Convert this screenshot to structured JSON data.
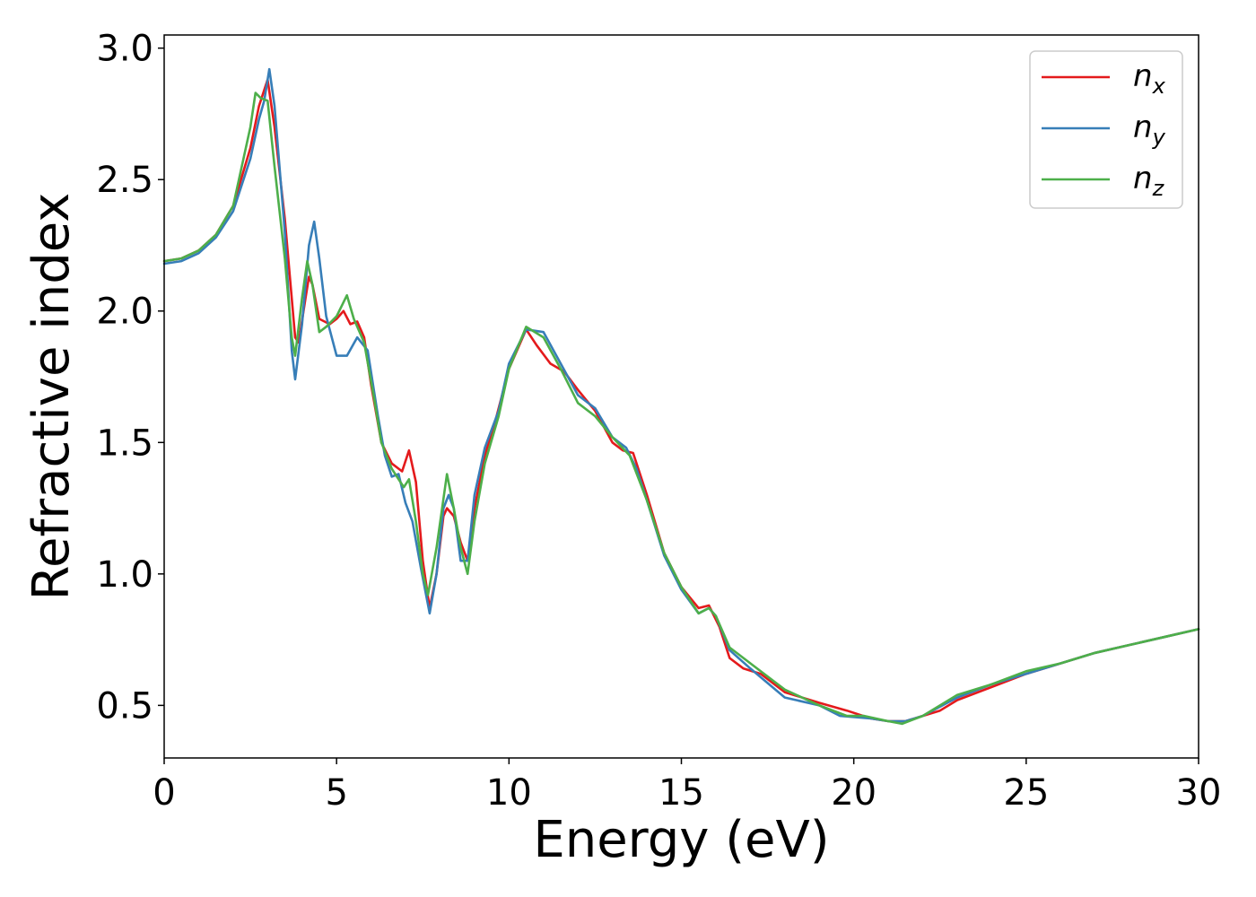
{
  "chart_data": {
    "type": "line",
    "title": "",
    "xlabel": "Energy (eV)",
    "ylabel": "Refractive index",
    "xlim": [
      0,
      30
    ],
    "ylim": [
      0.3,
      3.05
    ],
    "xticks": [
      0,
      5,
      10,
      15,
      20,
      25,
      30
    ],
    "xtick_labels": [
      "0",
      "5",
      "10",
      "15",
      "20",
      "25",
      "30"
    ],
    "yticks": [
      0.5,
      1.0,
      1.5,
      2.0,
      2.5,
      3.0
    ],
    "ytick_labels": [
      "0.5",
      "1.0",
      "1.5",
      "2.0",
      "2.5",
      "3.0"
    ],
    "grid": false,
    "legend_position": "top-right",
    "series": [
      {
        "name": "n",
        "subscript": "x",
        "color": "#e41a1c",
        "points": [
          [
            0,
            2.19
          ],
          [
            0.5,
            2.2
          ],
          [
            1,
            2.23
          ],
          [
            1.5,
            2.29
          ],
          [
            2,
            2.4
          ],
          [
            2.5,
            2.62
          ],
          [
            2.75,
            2.78
          ],
          [
            3.0,
            2.88
          ],
          [
            3.2,
            2.7
          ],
          [
            3.5,
            2.35
          ],
          [
            3.8,
            1.9
          ],
          [
            3.9,
            1.88
          ],
          [
            4.1,
            2.05
          ],
          [
            4.2,
            2.13
          ],
          [
            4.3,
            2.1
          ],
          [
            4.5,
            1.97
          ],
          [
            4.8,
            1.95
          ],
          [
            5.0,
            1.97
          ],
          [
            5.2,
            2.0
          ],
          [
            5.4,
            1.95
          ],
          [
            5.6,
            1.96
          ],
          [
            5.8,
            1.9
          ],
          [
            6.0,
            1.72
          ],
          [
            6.3,
            1.5
          ],
          [
            6.6,
            1.42
          ],
          [
            6.9,
            1.39
          ],
          [
            7.1,
            1.47
          ],
          [
            7.3,
            1.35
          ],
          [
            7.5,
            1.05
          ],
          [
            7.7,
            0.87
          ],
          [
            7.9,
            1.0
          ],
          [
            8.1,
            1.22
          ],
          [
            8.2,
            1.25
          ],
          [
            8.4,
            1.22
          ],
          [
            8.6,
            1.12
          ],
          [
            8.8,
            1.05
          ],
          [
            9.0,
            1.25
          ],
          [
            9.3,
            1.45
          ],
          [
            9.6,
            1.58
          ],
          [
            10.0,
            1.78
          ],
          [
            10.5,
            1.93
          ],
          [
            10.8,
            1.87
          ],
          [
            11.2,
            1.8
          ],
          [
            11.6,
            1.77
          ],
          [
            12.0,
            1.7
          ],
          [
            12.5,
            1.62
          ],
          [
            13.0,
            1.5
          ],
          [
            13.3,
            1.47
          ],
          [
            13.6,
            1.46
          ],
          [
            14.0,
            1.3
          ],
          [
            14.5,
            1.08
          ],
          [
            15.0,
            0.95
          ],
          [
            15.5,
            0.87
          ],
          [
            15.8,
            0.88
          ],
          [
            16.1,
            0.8
          ],
          [
            16.4,
            0.68
          ],
          [
            16.8,
            0.64
          ],
          [
            17.3,
            0.62
          ],
          [
            18.0,
            0.55
          ],
          [
            19.0,
            0.51
          ],
          [
            19.8,
            0.48
          ],
          [
            20.5,
            0.45
          ],
          [
            21.0,
            0.44
          ],
          [
            21.5,
            0.44
          ],
          [
            22.0,
            0.46
          ],
          [
            22.5,
            0.48
          ],
          [
            23.0,
            0.52
          ],
          [
            24.0,
            0.57
          ],
          [
            25.0,
            0.62
          ],
          [
            26.0,
            0.66
          ],
          [
            27.0,
            0.7
          ],
          [
            28.0,
            0.73
          ],
          [
            29.0,
            0.76
          ],
          [
            30.0,
            0.79
          ]
        ]
      },
      {
        "name": "n",
        "subscript": "y",
        "color": "#377eb8",
        "points": [
          [
            0,
            2.18
          ],
          [
            0.5,
            2.19
          ],
          [
            1,
            2.22
          ],
          [
            1.5,
            2.28
          ],
          [
            2,
            2.38
          ],
          [
            2.5,
            2.58
          ],
          [
            2.75,
            2.73
          ],
          [
            2.9,
            2.8
          ],
          [
            3.05,
            2.92
          ],
          [
            3.2,
            2.78
          ],
          [
            3.5,
            2.3
          ],
          [
            3.7,
            1.85
          ],
          [
            3.8,
            1.74
          ],
          [
            4.0,
            1.95
          ],
          [
            4.2,
            2.25
          ],
          [
            4.35,
            2.34
          ],
          [
            4.5,
            2.2
          ],
          [
            4.7,
            1.98
          ],
          [
            5.0,
            1.83
          ],
          [
            5.3,
            1.83
          ],
          [
            5.6,
            1.9
          ],
          [
            5.9,
            1.85
          ],
          [
            6.2,
            1.6
          ],
          [
            6.4,
            1.45
          ],
          [
            6.6,
            1.37
          ],
          [
            6.8,
            1.38
          ],
          [
            7.0,
            1.27
          ],
          [
            7.2,
            1.2
          ],
          [
            7.45,
            1.02
          ],
          [
            7.7,
            0.85
          ],
          [
            7.9,
            1.0
          ],
          [
            8.1,
            1.25
          ],
          [
            8.25,
            1.3
          ],
          [
            8.4,
            1.25
          ],
          [
            8.6,
            1.05
          ],
          [
            8.8,
            1.05
          ],
          [
            9.0,
            1.3
          ],
          [
            9.3,
            1.48
          ],
          [
            9.7,
            1.62
          ],
          [
            10.0,
            1.8
          ],
          [
            10.5,
            1.93
          ],
          [
            11.0,
            1.92
          ],
          [
            11.5,
            1.8
          ],
          [
            12.0,
            1.68
          ],
          [
            12.5,
            1.63
          ],
          [
            13.0,
            1.52
          ],
          [
            13.4,
            1.48
          ],
          [
            13.7,
            1.4
          ],
          [
            14.0,
            1.28
          ],
          [
            14.5,
            1.07
          ],
          [
            15.0,
            0.94
          ],
          [
            15.5,
            0.85
          ],
          [
            15.8,
            0.87
          ],
          [
            16.0,
            0.84
          ],
          [
            16.4,
            0.71
          ],
          [
            17.0,
            0.64
          ],
          [
            18.0,
            0.53
          ],
          [
            19.0,
            0.5
          ],
          [
            19.6,
            0.46
          ],
          [
            20.5,
            0.45
          ],
          [
            21.0,
            0.44
          ],
          [
            21.5,
            0.44
          ],
          [
            22.0,
            0.46
          ],
          [
            23.0,
            0.53
          ],
          [
            24.0,
            0.58
          ],
          [
            25.0,
            0.62
          ],
          [
            26.0,
            0.66
          ],
          [
            27.0,
            0.7
          ],
          [
            28.0,
            0.73
          ],
          [
            29.0,
            0.76
          ],
          [
            30.0,
            0.79
          ]
        ]
      },
      {
        "name": "n",
        "subscript": "z",
        "color": "#4daf4a",
        "points": [
          [
            0,
            2.19
          ],
          [
            0.5,
            2.2
          ],
          [
            1,
            2.23
          ],
          [
            1.5,
            2.29
          ],
          [
            2,
            2.4
          ],
          [
            2.5,
            2.7
          ],
          [
            2.65,
            2.83
          ],
          [
            2.8,
            2.81
          ],
          [
            3.0,
            2.8
          ],
          [
            3.2,
            2.55
          ],
          [
            3.5,
            2.2
          ],
          [
            3.7,
            1.9
          ],
          [
            3.8,
            1.83
          ],
          [
            4.0,
            2.05
          ],
          [
            4.15,
            2.19
          ],
          [
            4.3,
            2.1
          ],
          [
            4.5,
            1.92
          ],
          [
            4.7,
            1.94
          ],
          [
            5.0,
            1.98
          ],
          [
            5.3,
            2.06
          ],
          [
            5.5,
            1.97
          ],
          [
            5.8,
            1.88
          ],
          [
            6.1,
            1.66
          ],
          [
            6.3,
            1.5
          ],
          [
            6.6,
            1.4
          ],
          [
            6.8,
            1.36
          ],
          [
            6.95,
            1.33
          ],
          [
            7.1,
            1.36
          ],
          [
            7.3,
            1.2
          ],
          [
            7.5,
            1.0
          ],
          [
            7.65,
            0.92
          ],
          [
            7.9,
            1.1
          ],
          [
            8.2,
            1.38
          ],
          [
            8.4,
            1.25
          ],
          [
            8.6,
            1.1
          ],
          [
            8.8,
            1.0
          ],
          [
            9.0,
            1.2
          ],
          [
            9.3,
            1.42
          ],
          [
            9.7,
            1.6
          ],
          [
            10.0,
            1.78
          ],
          [
            10.5,
            1.94
          ],
          [
            11.0,
            1.9
          ],
          [
            11.5,
            1.78
          ],
          [
            12.0,
            1.65
          ],
          [
            12.5,
            1.6
          ],
          [
            13.0,
            1.52
          ],
          [
            13.5,
            1.45
          ],
          [
            14.0,
            1.28
          ],
          [
            14.5,
            1.08
          ],
          [
            15.0,
            0.95
          ],
          [
            15.5,
            0.85
          ],
          [
            15.8,
            0.87
          ],
          [
            16.0,
            0.84
          ],
          [
            16.4,
            0.72
          ],
          [
            17.0,
            0.66
          ],
          [
            18.0,
            0.56
          ],
          [
            19.0,
            0.5
          ],
          [
            19.8,
            0.46
          ],
          [
            20.3,
            0.46
          ],
          [
            21.0,
            0.44
          ],
          [
            21.4,
            0.43
          ],
          [
            22.0,
            0.46
          ],
          [
            23.0,
            0.54
          ],
          [
            24.0,
            0.58
          ],
          [
            25.0,
            0.63
          ],
          [
            26.0,
            0.66
          ],
          [
            27.0,
            0.7
          ],
          [
            28.0,
            0.73
          ],
          [
            29.0,
            0.76
          ],
          [
            30.0,
            0.79
          ]
        ]
      }
    ]
  }
}
